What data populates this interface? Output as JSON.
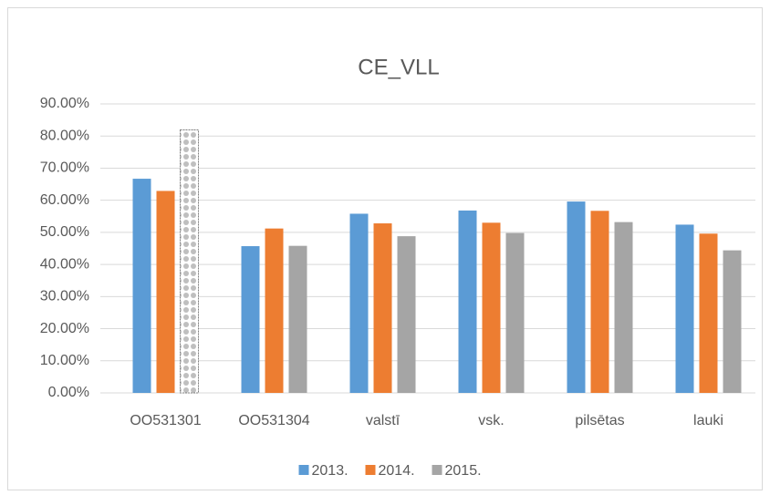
{
  "chart_data": {
    "type": "bar",
    "title": "CE_VLL",
    "categories": [
      "OO531301",
      "OO531304",
      "valstī",
      "vsk.",
      "pilsētas",
      "lauki"
    ],
    "series": [
      {
        "name": "2013.",
        "color": "#5b9bd5",
        "values": [
          66.7,
          45.7,
          55.8,
          56.8,
          59.6,
          52.4
        ]
      },
      {
        "name": "2014.",
        "color": "#ed7d31",
        "values": [
          62.9,
          51.2,
          52.8,
          53.0,
          56.7,
          49.6
        ]
      },
      {
        "name": "2015.",
        "color": "#a5a5a5",
        "values": [
          81.9,
          45.8,
          48.8,
          49.8,
          53.2,
          44.4
        ]
      }
    ],
    "highlight": {
      "series": 2,
      "index": 0,
      "pattern": "dots"
    },
    "ylim": [
      0,
      90
    ],
    "yticks": [
      {
        "value": 0,
        "label": "0.00%"
      },
      {
        "value": 10,
        "label": "10.00%"
      },
      {
        "value": 20,
        "label": "20.00%"
      },
      {
        "value": 30,
        "label": "30.00%"
      },
      {
        "value": 40,
        "label": "40.00%"
      },
      {
        "value": 50,
        "label": "50.00%"
      },
      {
        "value": 60,
        "label": "60.00%"
      },
      {
        "value": 70,
        "label": "70.00%"
      },
      {
        "value": 80,
        "label": "80.00%"
      },
      {
        "value": 90,
        "label": "90.00%"
      }
    ],
    "grid": true,
    "legend": "bottom"
  }
}
